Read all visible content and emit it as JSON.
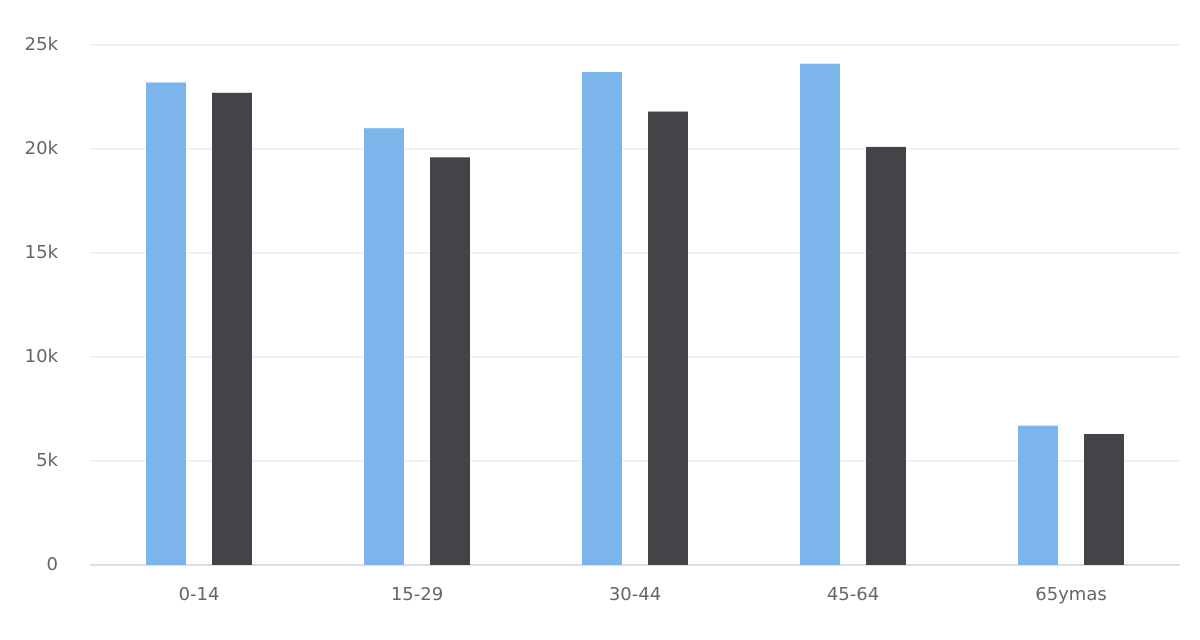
{
  "chart_data": {
    "type": "bar",
    "categories": [
      "0-14",
      "15-29",
      "30-44",
      "45-64",
      "65ymas"
    ],
    "series": [
      {
        "color": "#7cb5ec",
        "values": [
          23200,
          21000,
          23700,
          24100,
          6700
        ]
      },
      {
        "color": "#434348",
        "values": [
          22700,
          19600,
          21800,
          20100,
          6300
        ]
      }
    ],
    "ylim": [
      0,
      25000
    ],
    "yticks": [
      0,
      {
        "value": 5000,
        "label": "5k"
      },
      {
        "value": 10000,
        "label": "10k"
      },
      {
        "value": 15000,
        "label": "15k"
      },
      {
        "value": 20000,
        "label": "20k"
      },
      {
        "value": 25000,
        "label": "25k"
      }
    ],
    "grid": true
  }
}
